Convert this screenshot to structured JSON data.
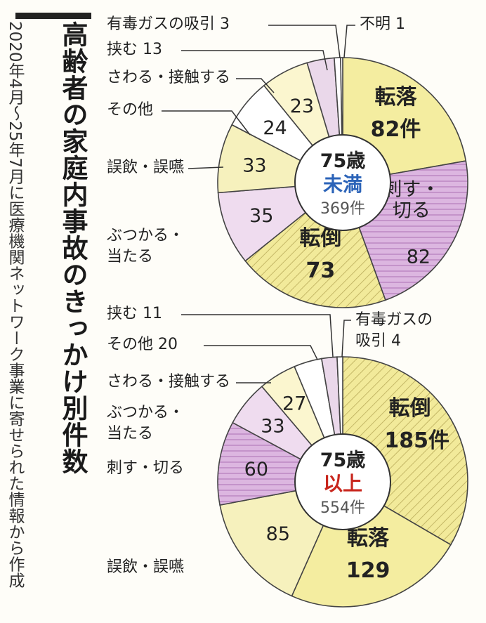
{
  "title": "高齢者の家庭内事故のきっかけ別件数",
  "source": "2020年4月〜25年7月に医療機関ネットワーク事業に寄せられた情報から作成",
  "chart_data": [
    {
      "type": "pie",
      "center_label": {
        "age": "75歳",
        "group": "未満",
        "total": "369件",
        "group_color": "#2b63b8"
      },
      "slices": [
        {
          "name": "転落",
          "value": 82,
          "value_text": "82件",
          "color": "#f4eda0",
          "pattern": "none"
        },
        {
          "name": "刺す・切る",
          "value": 82,
          "value_text": "82",
          "color": "#dcb6e0",
          "pattern": "stripes"
        },
        {
          "name": "転倒",
          "value": 73,
          "value_text": "73",
          "color": "#f2ea9a",
          "pattern": "hatch"
        },
        {
          "name": "ぶつかる・当たる",
          "value": 35,
          "value_text": "35",
          "color": "#efdcef",
          "pattern": "none"
        },
        {
          "name": "誤飲・誤嚥",
          "value": 33,
          "value_text": "33",
          "color": "#f6f1bd",
          "pattern": "none"
        },
        {
          "name": "その他",
          "value": 24,
          "value_text": "24",
          "color": "#ffffff",
          "pattern": "none"
        },
        {
          "name": "さわる・接触する",
          "value": 23,
          "value_text": "23",
          "color": "#fbf6cf",
          "pattern": "none"
        },
        {
          "name": "挟む",
          "value": 13,
          "value_text": "13",
          "color": "#ead8ea",
          "pattern": "none"
        },
        {
          "name": "有毒ガスの吸引",
          "value": 3,
          "value_text": "3",
          "color": "#ffffff",
          "pattern": "none"
        },
        {
          "name": "不明",
          "value": 1,
          "value_text": "1",
          "color": "#ffffff",
          "pattern": "none"
        }
      ]
    },
    {
      "type": "pie",
      "center_label": {
        "age": "75歳",
        "group": "以上",
        "total": "554件",
        "group_color": "#c8261d"
      },
      "slices": [
        {
          "name": "転倒",
          "value": 185,
          "value_text": "185件",
          "color": "#f2ea9a",
          "pattern": "hatch"
        },
        {
          "name": "転落",
          "value": 129,
          "value_text": "129",
          "color": "#f4eda0",
          "pattern": "none"
        },
        {
          "name": "誤飲・誤嚥",
          "value": 85,
          "value_text": "85",
          "color": "#f6f1bd",
          "pattern": "none"
        },
        {
          "name": "刺す・切る",
          "value": 60,
          "value_text": "60",
          "color": "#dcb6e0",
          "pattern": "stripes"
        },
        {
          "name": "ぶつかる・当たる",
          "value": 33,
          "value_text": "33",
          "color": "#efdcef",
          "pattern": "none"
        },
        {
          "name": "さわる・接触する",
          "value": 27,
          "value_text": "27",
          "color": "#fbf6cf",
          "pattern": "none"
        },
        {
          "name": "その他",
          "value": 20,
          "value_text": "20",
          "color": "#ffffff",
          "pattern": "none"
        },
        {
          "name": "挟む",
          "value": 11,
          "value_text": "11",
          "color": "#ead8ea",
          "pattern": "none"
        },
        {
          "name": "有毒ガスの吸引",
          "value": 4,
          "value_text": "4",
          "color": "#ffffff",
          "pattern": "none"
        }
      ]
    }
  ]
}
